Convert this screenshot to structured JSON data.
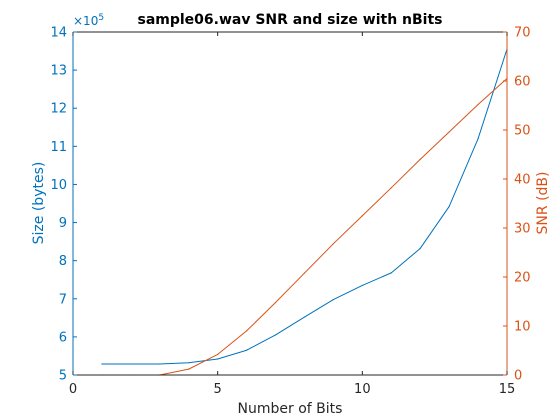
{
  "chart_data": {
    "type": "line",
    "title": "sample06.wav SNR and size with nBits",
    "xlabel": "Number of Bits",
    "ylabel_left": "Size (bytes)",
    "ylabel_right": "SNR (dB)",
    "left_axis_exponent": "×10",
    "left_axis_exponent_power": "5",
    "x": [
      1,
      2,
      3,
      4,
      5,
      6,
      7,
      8,
      9,
      10,
      11,
      12,
      13,
      14,
      15
    ],
    "xlim": [
      0,
      15
    ],
    "xticks": [
      "0",
      "5",
      "10",
      "15"
    ],
    "ylim_left": [
      5,
      14
    ],
    "yticks_left": [
      "5",
      "6",
      "7",
      "8",
      "9",
      "10",
      "11",
      "12",
      "13",
      "14"
    ],
    "ylim_right": [
      0,
      70
    ],
    "yticks_right": [
      "0",
      "10",
      "20",
      "30",
      "40",
      "50",
      "60",
      "70"
    ],
    "grid": false,
    "series": [
      {
        "axis": "left",
        "color": "#0072bd",
        "values": [
          5.29,
          5.29,
          5.29,
          5.32,
          5.42,
          5.65,
          6.05,
          6.52,
          6.98,
          7.35,
          7.68,
          8.32,
          9.42,
          11.2,
          13.55
        ]
      },
      {
        "axis": "right",
        "color": "#d95319",
        "values": [
          0,
          0,
          0,
          1.2,
          4.2,
          9.0,
          14.8,
          20.8,
          26.8,
          32.5,
          38.2,
          44.0,
          49.6,
          55.2,
          60.5
        ]
      }
    ]
  }
}
